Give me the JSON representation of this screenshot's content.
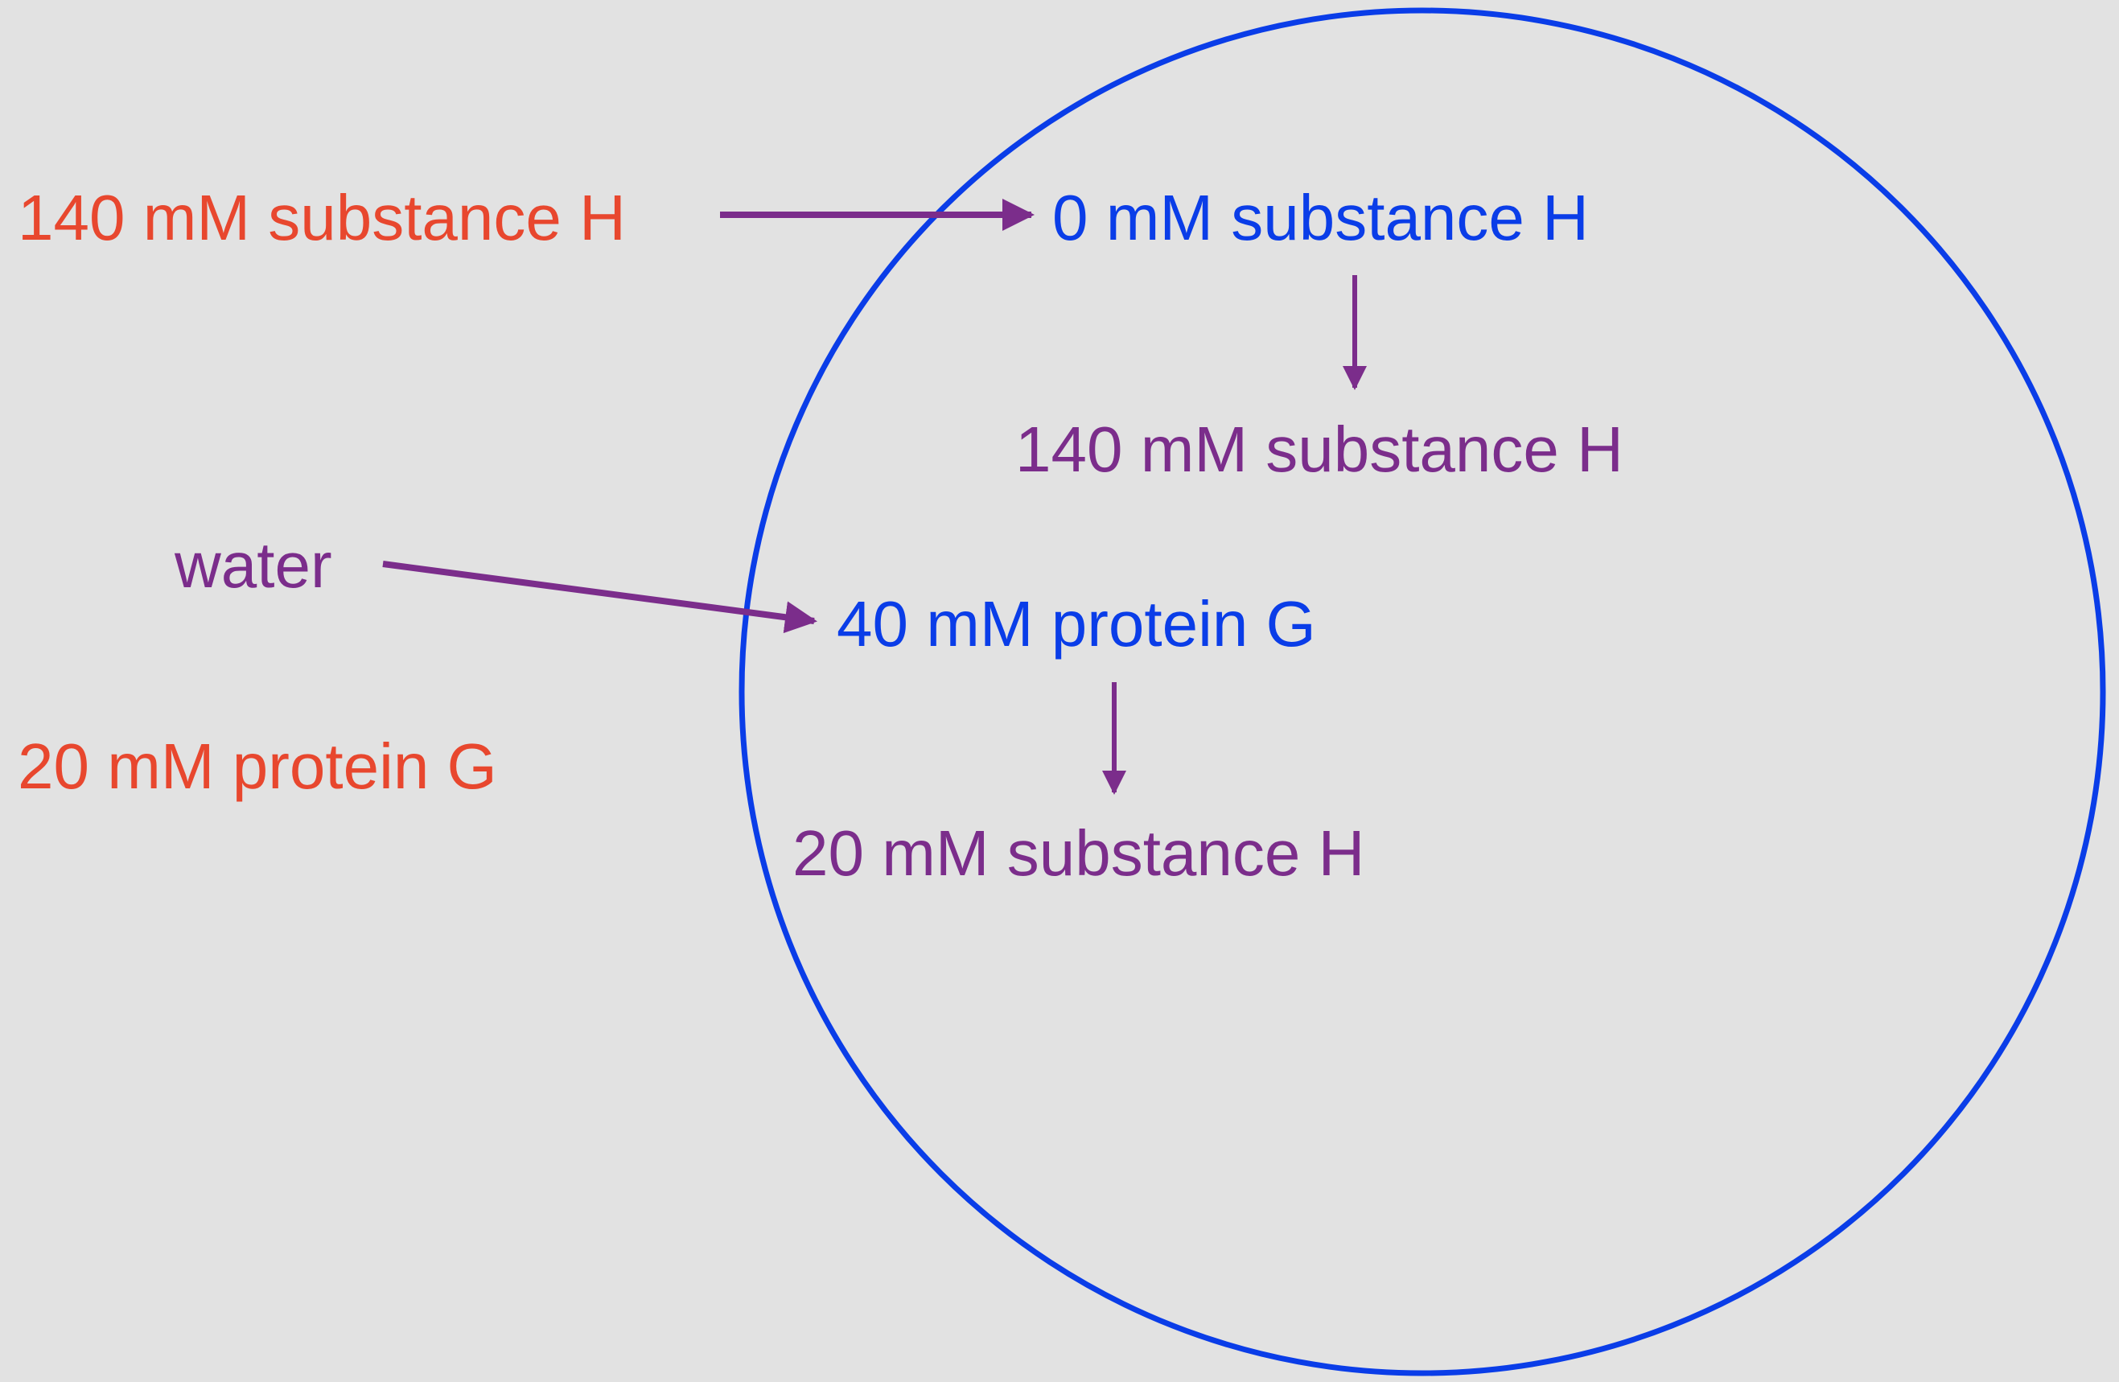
{
  "colors": {
    "background": "#e2e2e2",
    "outside": "#e8472e",
    "inside": "#0a3de8",
    "result": "#7b2d8b",
    "arrow": "#7b2d8b",
    "cell_border": "#0a3de8"
  },
  "outside": {
    "substance": "140 mM substance H",
    "protein": "20 mM protein G"
  },
  "inside": {
    "substance": "0 mM substance H",
    "protein": "40 mM protein G"
  },
  "results": {
    "substance": "140 mM substance H",
    "protein": "20 mM substance H"
  },
  "water_label": "water"
}
